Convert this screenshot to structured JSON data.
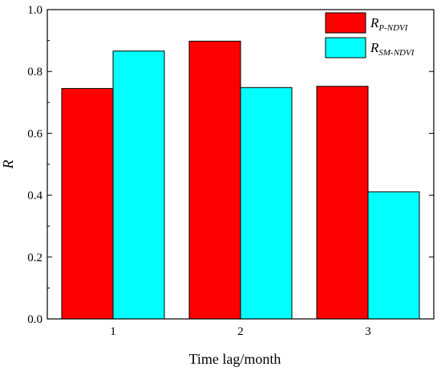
{
  "chart_data": {
    "type": "bar",
    "categories": [
      "1",
      "2",
      "3"
    ],
    "series": [
      {
        "name": "R",
        "subscript": "P-NDVI",
        "color": "#ff0000",
        "values": [
          0.745,
          0.898,
          0.752
        ]
      },
      {
        "name": "R",
        "subscript": "SM-NDVI",
        "color": "#00ffff",
        "values": [
          0.866,
          0.748,
          0.411
        ]
      }
    ],
    "title": "",
    "xlabel": "Time lag/month",
    "ylabel": "R",
    "ylim": [
      0,
      1.0
    ],
    "yticks": [
      "0.0",
      "0.2",
      "0.4",
      "0.6",
      "0.8",
      "1.0"
    ],
    "grid": false,
    "legend_position": "top-right"
  }
}
